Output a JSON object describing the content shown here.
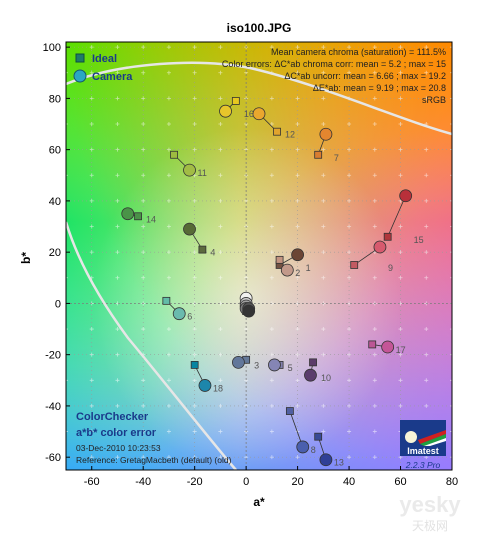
{
  "page": {
    "title": "iso100.JPG"
  },
  "chart_data": {
    "type": "scatter",
    "title": "iso100.JPG",
    "xlabel": "a*",
    "ylabel": "b*",
    "xlim": [
      -70,
      80
    ],
    "ylim": [
      -65,
      102
    ],
    "xticks": [
      -60,
      -40,
      -20,
      0,
      20,
      40,
      60,
      80
    ],
    "yticks": [
      -60,
      -40,
      -20,
      0,
      20,
      40,
      60,
      80,
      100
    ],
    "legend": {
      "position": "top-left",
      "ideal": "Ideal",
      "camera": "Camera"
    },
    "stats": [
      "Mean camera chroma (saturation) = 111.5%",
      "Color errors: ΔC*ab chroma corr:  mean = 5.2 ;  max = 15",
      "ΔC*ab uncorr:  mean = 6.66 ;  max = 19.2",
      "ΔE*ab:  mean = 9.19 ;  max = 20.8",
      "sRGB"
    ],
    "patches": [
      {
        "id": "1",
        "ideal": [
          13,
          15
        ],
        "camera": [
          20,
          19
        ],
        "color": "#6b4535",
        "ideal_color": "#735142"
      },
      {
        "id": "2",
        "ideal": [
          13,
          17
        ],
        "camera": [
          16,
          13
        ],
        "color": "#c2998a",
        "ideal_color": "#c39481"
      },
      {
        "id": "3",
        "ideal": [
          0,
          -22
        ],
        "camera": [
          -3,
          -23
        ],
        "color": "#62779a",
        "ideal_color": "#647998"
      },
      {
        "id": "4",
        "ideal": [
          -17,
          21
        ],
        "camera": [
          -22,
          29
        ],
        "color": "#576a36",
        "ideal_color": "#5c6a3e"
      },
      {
        "id": "5",
        "ideal": [
          13,
          -24
        ],
        "camera": [
          11,
          -24
        ],
        "color": "#8585b5",
        "ideal_color": "#8381ae"
      },
      {
        "id": "6",
        "ideal": [
          -31,
          1
        ],
        "camera": [
          -26,
          -4
        ],
        "color": "#6abbae",
        "ideal_color": "#63bca8"
      },
      {
        "id": "7",
        "ideal": [
          28,
          58
        ],
        "camera": [
          31,
          66
        ],
        "color": "#e3862f",
        "ideal_color": "#d87d31"
      },
      {
        "id": "8",
        "ideal": [
          17,
          -42
        ],
        "camera": [
          22,
          -56
        ],
        "color": "#4a5fae",
        "ideal_color": "#5160a2"
      },
      {
        "id": "9",
        "ideal": [
          42,
          15
        ],
        "camera": [
          52,
          22
        ],
        "color": "#d75a6e",
        "ideal_color": "#c35a62"
      },
      {
        "id": "10",
        "ideal": [
          26,
          -23
        ],
        "camera": [
          25,
          -28
        ],
        "color": "#5a3d6c",
        "ideal_color": "#5c3c6a"
      },
      {
        "id": "11",
        "ideal": [
          -28,
          58
        ],
        "camera": [
          -22,
          52
        ],
        "color": "#a2bc45",
        "ideal_color": "#9dbb40"
      },
      {
        "id": "12",
        "ideal": [
          12,
          67
        ],
        "camera": [
          5,
          74
        ],
        "color": "#eaa72e",
        "ideal_color": "#e0a42e"
      },
      {
        "id": "13",
        "ideal": [
          28,
          -52
        ],
        "camera": [
          31,
          -61
        ],
        "color": "#2f3f96",
        "ideal_color": "#394a95"
      },
      {
        "id": "14",
        "ideal": [
          -42,
          34
        ],
        "camera": [
          -46,
          35
        ],
        "color": "#4a9448",
        "ideal_color": "#4a9148"
      },
      {
        "id": "15",
        "ideal": [
          55,
          26
        ],
        "camera": [
          62,
          42
        ],
        "color": "#b8303a",
        "ideal_color": "#b0363c"
      },
      {
        "id": "16",
        "ideal": [
          -4,
          79
        ],
        "camera": [
          -8,
          75
        ],
        "color": "#e7c62b",
        "ideal_color": "#e7c81f"
      },
      {
        "id": "17",
        "ideal": [
          49,
          -16
        ],
        "camera": [
          55,
          -17
        ],
        "color": "#c45597",
        "ideal_color": "#bb5695"
      },
      {
        "id": "18",
        "ideal": [
          -20,
          -24
        ],
        "camera": [
          -16,
          -32
        ],
        "color": "#1d86ab",
        "ideal_color": "#0885a1"
      },
      {
        "id": "",
        "ideal": [
          0,
          1
        ],
        "camera": [
          0,
          2
        ],
        "color": "#f2f2f0",
        "ideal_color": "#f3f3f2"
      },
      {
        "id": "",
        "ideal": [
          0,
          0
        ],
        "camera": [
          0,
          0
        ],
        "color": "#c8c8c8",
        "ideal_color": "#c8c8c8"
      },
      {
        "id": "",
        "ideal": [
          0,
          -1
        ],
        "camera": [
          0,
          -1
        ],
        "color": "#a0a0a0",
        "ideal_color": "#a0a0a0"
      },
      {
        "id": "",
        "ideal": [
          0,
          -2
        ],
        "camera": [
          0,
          -2
        ],
        "color": "#7a7a79",
        "ideal_color": "#7a7a79"
      },
      {
        "id": "",
        "ideal": [
          0,
          -2
        ],
        "camera": [
          1,
          -2
        ],
        "color": "#555555",
        "ideal_color": "#555555"
      },
      {
        "id": "",
        "ideal": [
          0,
          -3
        ],
        "camera": [
          1,
          -3
        ],
        "color": "#343434",
        "ideal_color": "#343434"
      }
    ],
    "gamut_curves": "sRGB boundary",
    "grid": true
  },
  "colorchecker": {
    "title_line1": "ColorChecker",
    "title_line2": "a*b* color error",
    "date": "03-Dec-2010 10:23:53",
    "reference": "Reference: GretagMacbeth (default) (old)"
  },
  "logo": {
    "text": "Imatest",
    "version": "2.2.3  Pro"
  },
  "watermark": {
    "text": "yesky",
    "subtext": "天极网"
  },
  "colors": {
    "ideal_marker": "#1f7a6a",
    "camera_marker": "#2aa7c4",
    "legend_text": "#1a3a8a",
    "gamut_line": "#e0e0e0"
  }
}
